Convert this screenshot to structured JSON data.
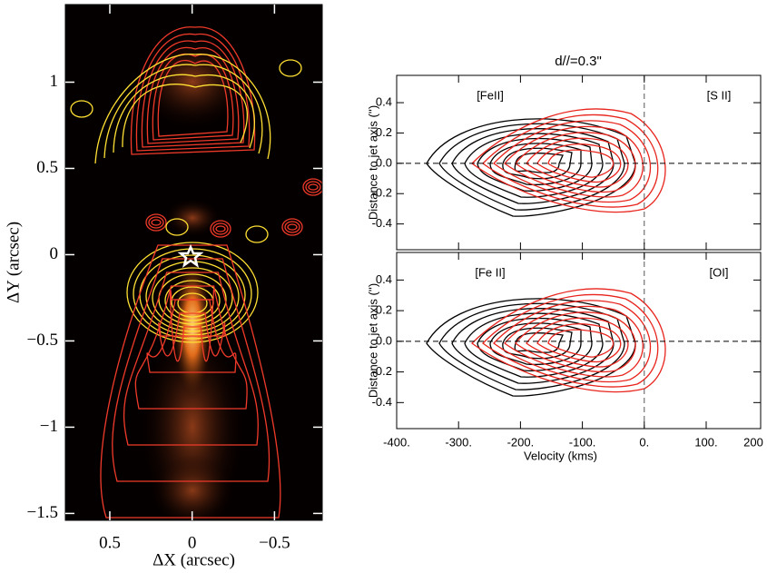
{
  "chart_data": [
    {
      "type": "image",
      "xlabel": "ΔX (arcsec)",
      "ylabel": "ΔY (arcsec)",
      "xlim": [
        0.77,
        -0.79
      ],
      "ylim": [
        -1.54,
        1.45
      ],
      "xticks": [
        0.5,
        0,
        {
          "value": -0.5,
          "label": "−0.5"
        }
      ],
      "yticks": [
        {
          "value": -1.5,
          "label": "−1.5"
        },
        {
          "value": -1,
          "label": "−1"
        },
        {
          "value": -0.5,
          "label": "−0.5"
        },
        0,
        0.5,
        1
      ]
    },
    {
      "type": "contour",
      "title": "d//=0.3\"",
      "ylabel": "Distance to jet axis ('')",
      "xlim": [
        -400,
        188
      ],
      "ylim": [
        -0.57,
        0.58
      ],
      "yticks": [
        {
          "value": -0.4,
          "label": "-0.4"
        },
        {
          "value": -0.2,
          "label": "-0.2"
        },
        {
          "value": 0,
          "label": "0.0"
        },
        0.2,
        0.4
      ],
      "annotations": [
        "[FeII]",
        "[S II]"
      ]
    },
    {
      "type": "contour",
      "ylabel": "Distance to jet axis ('')",
      "xlabel": "Velocity (kms)",
      "xlim": [
        -400,
        188
      ],
      "ylim": [
        -0.57,
        0.58
      ],
      "xticks": [
        {
          "value": -400,
          "label": "-400."
        },
        {
          "value": -300,
          "label": "-300."
        },
        {
          "value": -200,
          "label": "-200."
        },
        {
          "value": -100,
          "label": "-100."
        },
        {
          "value": 0,
          "label": "0."
        },
        {
          "value": 100,
          "label": "100."
        },
        200
      ],
      "yticks": [
        {
          "value": -0.4,
          "label": "-0.4"
        },
        {
          "value": -0.2,
          "label": "-0.2"
        },
        {
          "value": 0,
          "label": "0.0"
        },
        0.2,
        0.4
      ],
      "annotations": [
        "[Fe II]",
        "[OI]"
      ]
    }
  ]
}
